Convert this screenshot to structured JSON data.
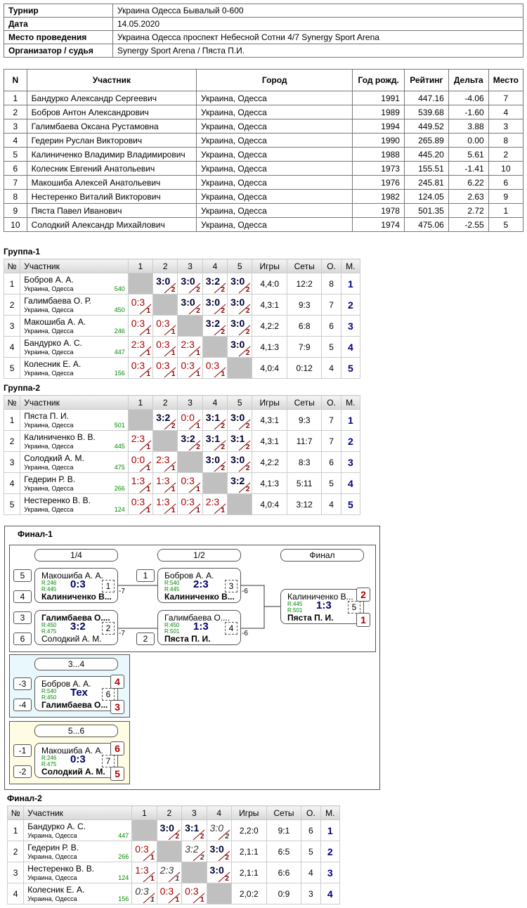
{
  "info": {
    "rows": [
      [
        "Турнир",
        "Украина Одесса Бывалый 0-600"
      ],
      [
        "Дата",
        "14.05.2020"
      ],
      [
        "Место проведения",
        "Украина Одесса проспект Небесной Сотни 4/7 Synergy Sport Arena"
      ],
      [
        "Организатор / судья",
        "Synergy Sport Arena / Пяста П.И."
      ]
    ]
  },
  "players": {
    "header": [
      "N",
      "Участник",
      "Город",
      "Год рожд.",
      "Рейтинг",
      "Дельта",
      "Место"
    ],
    "rows": [
      [
        "1",
        "Бандурко Александр Сергеевич",
        "Украина, Одесса",
        "1991",
        "447.16",
        "-4.06",
        "7"
      ],
      [
        "2",
        "Бобров Антон Александрович",
        "Украина, Одесса",
        "1989",
        "539.68",
        "-1.60",
        "4"
      ],
      [
        "3",
        "Галимбаева Оксана Рустамовна",
        "Украина, Одесса",
        "1994",
        "449.52",
        "3.88",
        "3"
      ],
      [
        "4",
        "Гедерин Руслан Викторович",
        "Украина, Одесса",
        "1990",
        "265.89",
        "0.00",
        "8"
      ],
      [
        "5",
        "Калиниченко Владимир Владимирович",
        "Украина, Одесса",
        "1988",
        "445.20",
        "5.61",
        "2"
      ],
      [
        "6",
        "Колесник Евгений Анатольевич",
        "Украина, Одесса",
        "1973",
        "155.51",
        "-1.41",
        "10"
      ],
      [
        "7",
        "Макошиба Алексей Анатольевич",
        "Украина, Одесса",
        "1976",
        "245.81",
        "6.22",
        "6"
      ],
      [
        "8",
        "Нестеренко Виталий Викторович",
        "Украина, Одесса",
        "1982",
        "124.05",
        "2.63",
        "9"
      ],
      [
        "9",
        "Пяста Павел Иванович",
        "Украина, Одесса",
        "1978",
        "501.35",
        "2.72",
        "1"
      ],
      [
        "10",
        "Солодкий Александр Михайлович",
        "Украина, Одесса",
        "1974",
        "475.06",
        "-2.55",
        "5"
      ]
    ]
  },
  "groups": [
    {
      "title": "Группа-1",
      "header": [
        "№",
        "Участник",
        "1",
        "2",
        "3",
        "4",
        "5",
        "Игры",
        "Сеты",
        "О.",
        "М."
      ],
      "rows": [
        {
          "n": "1",
          "name": "Бобров А. А.",
          "city": "Украина, Одесса",
          "rating": "540",
          "cells": [
            null,
            {
              "score": "3:0",
              "pts": "2"
            },
            {
              "score": "3:0",
              "pts": "2"
            },
            {
              "score": "3:2",
              "pts": "2"
            },
            {
              "score": "3:0",
              "pts": "2"
            }
          ],
          "games": "4,4:0",
          "sets": "12:2",
          "points": "8",
          "place": "1"
        },
        {
          "n": "2",
          "name": "Галимбаева О. Р.",
          "city": "Украина, Одесса",
          "rating": "450",
          "cells": [
            {
              "score": "0:3",
              "pts": "1"
            },
            null,
            {
              "score": "3:0",
              "pts": "2"
            },
            {
              "score": "3:0",
              "pts": "2"
            },
            {
              "score": "3:0",
              "pts": "2"
            }
          ],
          "games": "4,3:1",
          "sets": "9:3",
          "points": "7",
          "place": "2"
        },
        {
          "n": "3",
          "name": "Макошиба А. А.",
          "city": "Украина, Одесса",
          "rating": "246",
          "cells": [
            {
              "score": "0:3",
              "pts": "1"
            },
            {
              "score": "0:3",
              "pts": "1"
            },
            null,
            {
              "score": "3:2",
              "pts": "2"
            },
            {
              "score": "3:0",
              "pts": "2"
            }
          ],
          "games": "4,2:2",
          "sets": "6:8",
          "points": "6",
          "place": "3"
        },
        {
          "n": "4",
          "name": "Бандурко А. С.",
          "city": "Украина, Одесса",
          "rating": "447",
          "cells": [
            {
              "score": "2:3",
              "pts": "1"
            },
            {
              "score": "0:3",
              "pts": "1"
            },
            {
              "score": "2:3",
              "pts": "1"
            },
            null,
            {
              "score": "3:0",
              "pts": "2"
            }
          ],
          "games": "4,1:3",
          "sets": "7:9",
          "points": "5",
          "place": "4"
        },
        {
          "n": "5",
          "name": "Колесник Е. А.",
          "city": "Украина, Одесса",
          "rating": "156",
          "cells": [
            {
              "score": "0:3",
              "pts": "1"
            },
            {
              "score": "0:3",
              "pts": "1"
            },
            {
              "score": "0:3",
              "pts": "1"
            },
            {
              "score": "0:3",
              "pts": "1"
            },
            null
          ],
          "games": "4,0:4",
          "sets": "0:12",
          "points": "4",
          "place": "5"
        }
      ]
    },
    {
      "title": "Группа-2",
      "header": [
        "№",
        "Участник",
        "1",
        "2",
        "3",
        "4",
        "5",
        "Игры",
        "Сеты",
        "О.",
        "М."
      ],
      "rows": [
        {
          "n": "1",
          "name": "Пяста П. И.",
          "city": "Украина, Одесса",
          "rating": "501",
          "cells": [
            null,
            {
              "score": "3:2",
              "pts": "2"
            },
            {
              "score": "0:0",
              "pts": "1"
            },
            {
              "score": "3:1",
              "pts": "2"
            },
            {
              "score": "3:0",
              "pts": "2"
            }
          ],
          "games": "4,3:1",
          "sets": "9:3",
          "points": "7",
          "place": "1"
        },
        {
          "n": "2",
          "name": "Калиниченко В. В.",
          "city": "Украина, Одесса",
          "rating": "445",
          "cells": [
            {
              "score": "2:3",
              "pts": "1"
            },
            null,
            {
              "score": "3:2",
              "pts": "2"
            },
            {
              "score": "3:1",
              "pts": "2"
            },
            {
              "score": "3:1",
              "pts": "2"
            }
          ],
          "games": "4,3:1",
          "sets": "11:7",
          "points": "7",
          "place": "2"
        },
        {
          "n": "3",
          "name": "Солодкий А. М.",
          "city": "Украина, Одесса",
          "rating": "475",
          "cells": [
            {
              "score": "0:0",
              "pts": "1"
            },
            {
              "score": "2:3",
              "pts": "1"
            },
            null,
            {
              "score": "3:0",
              "pts": "2"
            },
            {
              "score": "3:0",
              "pts": "2"
            }
          ],
          "games": "4,2:2",
          "sets": "8:3",
          "points": "6",
          "place": "3"
        },
        {
          "n": "4",
          "name": "Гедерин Р. В.",
          "city": "Украина, Одесса",
          "rating": "266",
          "cells": [
            {
              "score": "1:3",
              "pts": "1"
            },
            {
              "score": "1:3",
              "pts": "1"
            },
            {
              "score": "0:3",
              "pts": "1"
            },
            null,
            {
              "score": "3:2",
              "pts": "2"
            }
          ],
          "games": "4,1:3",
          "sets": "5:11",
          "points": "5",
          "place": "4"
        },
        {
          "n": "5",
          "name": "Нестеренко В. В.",
          "city": "Украина, Одесса",
          "rating": "124",
          "cells": [
            {
              "score": "0:3",
              "pts": "1"
            },
            {
              "score": "1:3",
              "pts": "1"
            },
            {
              "score": "0:3",
              "pts": "1"
            },
            {
              "score": "2:3",
              "pts": "1"
            },
            null
          ],
          "games": "4,0:4",
          "sets": "3:12",
          "points": "4",
          "place": "5"
        }
      ]
    }
  ],
  "final1": {
    "title": "Финал-1",
    "rounds": [
      "1/4",
      "1/2",
      "Финал"
    ],
    "matches": [
      {
        "p1": {
          "seed": "5",
          "name": "Макошиба А. А.",
          "rating": "R:246"
        },
        "p2": {
          "seed": "4",
          "name": "Калиниченко В...",
          "rating": "R:445"
        },
        "winner": 2,
        "score": "0:3",
        "num": "1",
        "next": "-7"
      },
      {
        "p1": {
          "seed": "3",
          "name": "Галимбаева О....",
          "rating": "R:450"
        },
        "p2": {
          "seed": "6",
          "name": "Солодкий А. М.",
          "rating": "R:475"
        },
        "winner": 1,
        "score": "3:2",
        "num": "2",
        "next": "-7"
      },
      {
        "p1": {
          "seed": "1",
          "name": "Бобров А. А.",
          "rating": "R:540"
        },
        "p2": {
          "name": "Калиниченко В...",
          "rating": "R:445"
        },
        "winner": 2,
        "score": "2:3",
        "num": "3",
        "next": "-6"
      },
      {
        "p1": {
          "name": "Галимбаева О....",
          "rating": "R:450"
        },
        "p2": {
          "seed": "2",
          "name": "Пяста П. И.",
          "rating": "R:501"
        },
        "winner": 2,
        "score": "1:3",
        "num": "4",
        "next": "-6"
      },
      {
        "p1": {
          "name": "Калиниченко В...",
          "rating": "R:445",
          "place": "2"
        },
        "p2": {
          "name": "Пяста П. И.",
          "rating": "R:501",
          "place": "1"
        },
        "winner": 2,
        "score": "1:3",
        "num": "5"
      }
    ],
    "consolation": [
      {
        "title": "3...4",
        "match": {
          "p1": {
            "seed": "-3",
            "name": "Бобров А. А.",
            "rating": "R:540",
            "place": "4"
          },
          "p2": {
            "seed": "-4",
            "name": "Галимбаева О...",
            "rating": "R:450",
            "place": "3"
          },
          "winner": 2,
          "score": "Тех",
          "num": "6"
        }
      },
      {
        "title": "5...6",
        "match": {
          "p1": {
            "seed": "-1",
            "name": "Макошиба А. А.",
            "rating": "R:246",
            "place": "6"
          },
          "p2": {
            "seed": "-2",
            "name": "Солодкий А. М.",
            "rating": "R:475",
            "place": "5"
          },
          "winner": 2,
          "score": "0:3",
          "num": "7"
        }
      }
    ]
  },
  "final2": {
    "title": "Финал-2",
    "header": [
      "№",
      "Участник",
      "1",
      "2",
      "3",
      "4",
      "Игры",
      "Сеты",
      "О.",
      "М."
    ],
    "rows": [
      {
        "n": "1",
        "name": "Бандурко А. С.",
        "city": "Украина, Одесса",
        "rating": "447",
        "cells": [
          null,
          {
            "score": "3:0",
            "pts": "2"
          },
          {
            "score": "3:1",
            "pts": "2"
          },
          {
            "score": "3:0",
            "pts": "2",
            "italic": true
          }
        ],
        "games": "2,2:0",
        "sets": "9:1",
        "points": "6",
        "place": "1"
      },
      {
        "n": "2",
        "name": "Гедерин Р. В.",
        "city": "Украина, Одесса",
        "rating": "266",
        "cells": [
          {
            "score": "0:3",
            "pts": "1"
          },
          null,
          {
            "score": "3:2",
            "pts": "2",
            "italic": true
          },
          {
            "score": "3:0",
            "pts": "2"
          }
        ],
        "games": "2,1:1",
        "sets": "6:5",
        "points": "5",
        "place": "2"
      },
      {
        "n": "3",
        "name": "Нестеренко В. В.",
        "city": "Украина, Одесса",
        "rating": "124",
        "cells": [
          {
            "score": "1:3",
            "pts": "1"
          },
          {
            "score": "2:3",
            "pts": "1",
            "italic": true
          },
          null,
          {
            "score": "3:0",
            "pts": "2"
          }
        ],
        "games": "2,1:1",
        "sets": "6:6",
        "points": "4",
        "place": "3"
      },
      {
        "n": "4",
        "name": "Колесник Е. А.",
        "city": "Украина, Одесса",
        "rating": "156",
        "cells": [
          {
            "score": "0:3",
            "pts": "1",
            "italic": true
          },
          {
            "score": "0:3",
            "pts": "1"
          },
          {
            "score": "0:3",
            "pts": "1"
          },
          null
        ],
        "games": "2,0:2",
        "sets": "0:9",
        "points": "3",
        "place": "4"
      }
    ]
  }
}
